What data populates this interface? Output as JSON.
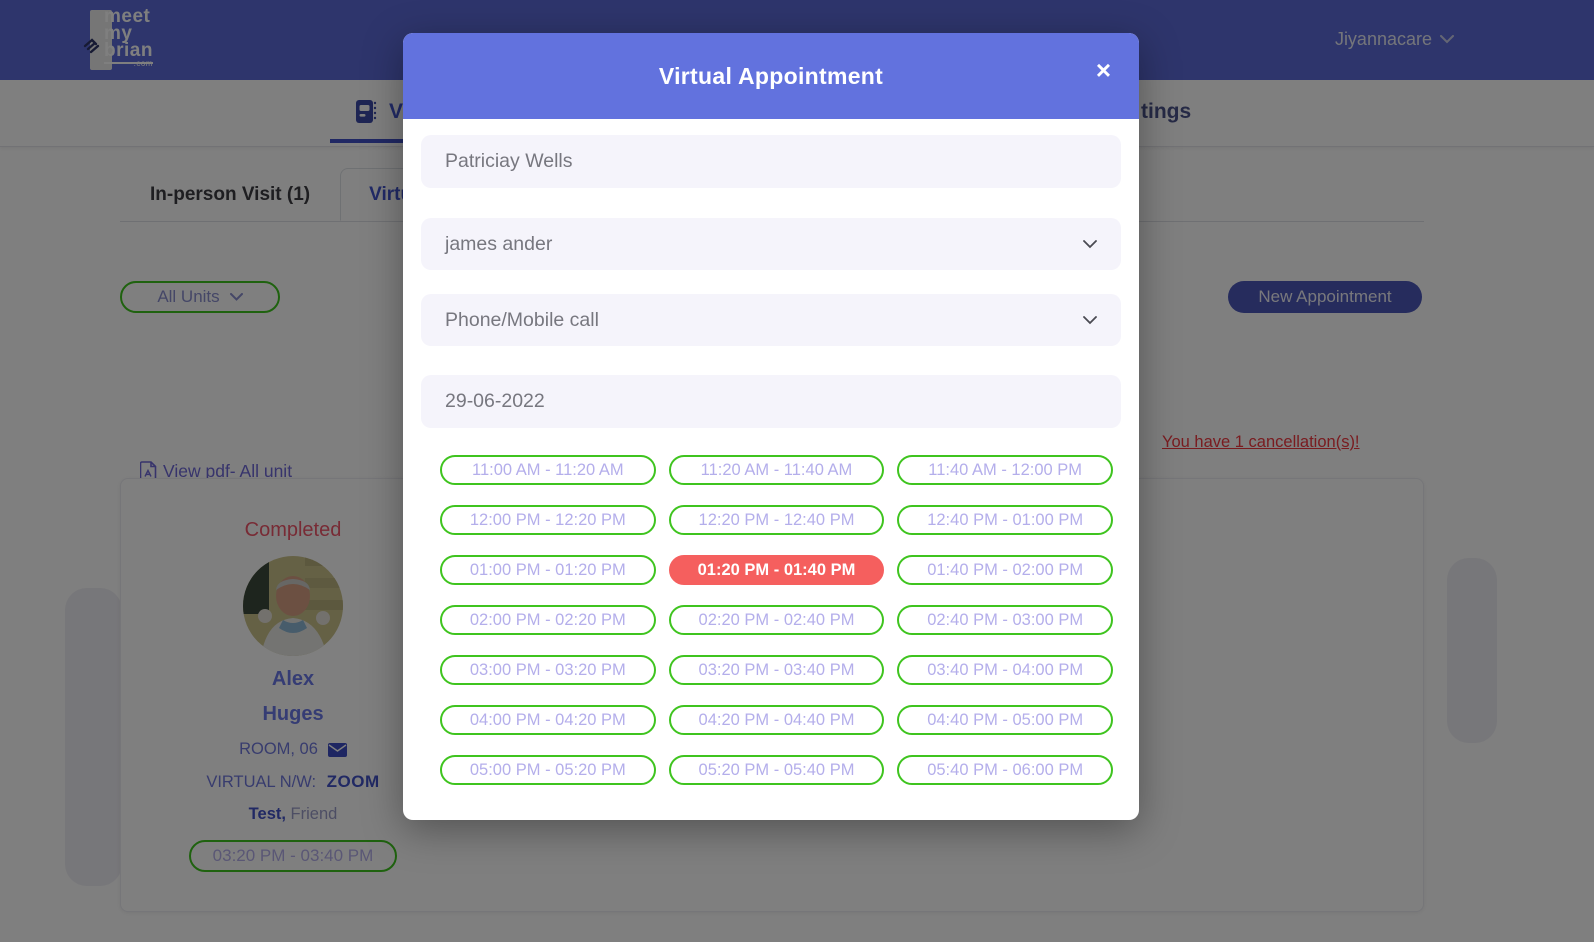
{
  "navbar": {
    "logo": {
      "line1": "meet",
      "line2": "my",
      "line3": "brian",
      "tld": ".com"
    },
    "user_menu": "Jiyannacare"
  },
  "subnav": {
    "left_partial": "V",
    "right_partial": "tings"
  },
  "tabs": [
    {
      "label": "In-person Visit (1)",
      "active": false
    },
    {
      "label": "Virtual A",
      "active": true
    }
  ],
  "filters": {
    "unit_select": "All Units",
    "new_appointment": "New Appointment"
  },
  "alerts": {
    "cancellation": "You have 1 cancellation(s)!"
  },
  "links": {
    "view_pdf": "View pdf- All unit"
  },
  "patient_card": {
    "status": "Completed",
    "first_name": "Alex",
    "last_name": "Huges",
    "room": "ROOM, 06",
    "network_label": "VIRTUAL N/W:",
    "network_value": "ZOOM",
    "relation_bold": "Test,",
    "relation_rest": " Friend",
    "slot": "03:20 PM - 03:40 PM"
  },
  "modal": {
    "title": "Virtual Appointment",
    "close": "×",
    "patient_name": "Patriciay Wells",
    "provider": "james ander",
    "call_type": "Phone/Mobile call",
    "date": "29-06-2022",
    "selected_slot": "01:20 PM - 01:40 PM",
    "slots": [
      {
        "label": "11:00 AM - 11:20 AM",
        "selected": false
      },
      {
        "label": "11:20 AM - 11:40 AM",
        "selected": false
      },
      {
        "label": "11:40 AM - 12:00 PM",
        "selected": false
      },
      {
        "label": "12:00 PM - 12:20 PM",
        "selected": false
      },
      {
        "label": "12:20 PM - 12:40 PM",
        "selected": false
      },
      {
        "label": "12:40 PM - 01:00 PM",
        "selected": false
      },
      {
        "label": "01:00 PM - 01:20 PM",
        "selected": false
      },
      {
        "label": "01:20 PM - 01:40 PM",
        "selected": true
      },
      {
        "label": "01:40 PM - 02:00 PM",
        "selected": false
      },
      {
        "label": "02:00 PM - 02:20 PM",
        "selected": false
      },
      {
        "label": "02:20 PM - 02:40 PM",
        "selected": false
      },
      {
        "label": "02:40 PM - 03:00 PM",
        "selected": false
      },
      {
        "label": "03:00 PM - 03:20 PM",
        "selected": false
      },
      {
        "label": "03:20 PM - 03:40 PM",
        "selected": false
      },
      {
        "label": "03:40 PM - 04:00 PM",
        "selected": false
      },
      {
        "label": "04:00 PM - 04:20 PM",
        "selected": false
      },
      {
        "label": "04:20 PM - 04:40 PM",
        "selected": false
      },
      {
        "label": "04:40 PM - 05:00 PM",
        "selected": false
      },
      {
        "label": "05:00 PM - 05:20 PM",
        "selected": false
      },
      {
        "label": "05:20 PM - 05:40 PM",
        "selected": false
      },
      {
        "label": "05:40 PM - 06:00 PM",
        "selected": false
      }
    ]
  },
  "colors": {
    "navbar-bg": "#5d6bd8",
    "modal-header-bg": "#6272de",
    "accent-indigo": "#4254cf",
    "slot-green": "#3fc41f",
    "slot-text": "#b4aeeb",
    "slot-selected-bg": "#f55f5e",
    "status-red": "#f0566b",
    "cancel-red": "#f23840",
    "link-purple": "#6f68d8",
    "name-indigo": "#6b79e8",
    "input-bg": "#f5f4fb",
    "input-text": "#77777f",
    "btn-navy": "#4c59bb"
  }
}
